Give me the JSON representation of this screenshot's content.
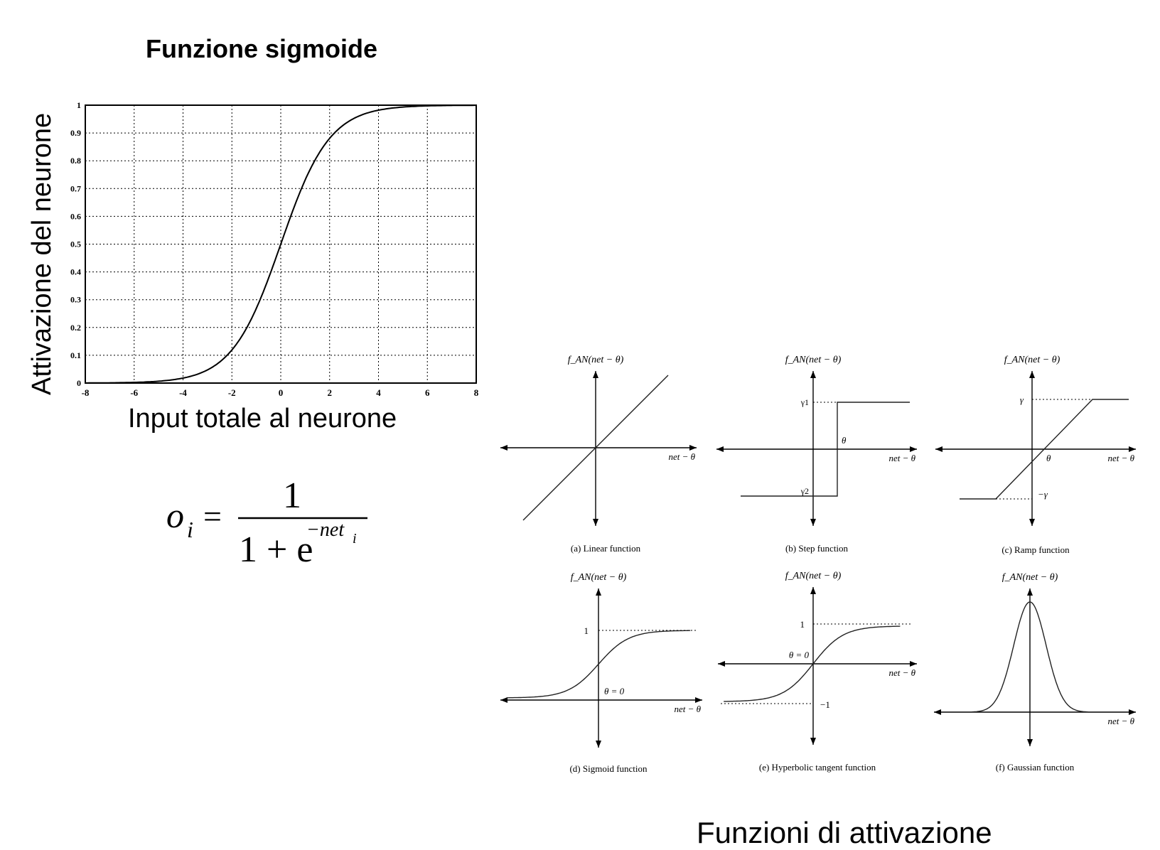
{
  "chart_data": [
    {
      "type": "line",
      "title": "Funzione sigmoide",
      "xlabel": "Input totale al neurone",
      "ylabel": "Attivazione del neurone",
      "xlim": [
        -8,
        8
      ],
      "ylim": [
        0,
        1
      ],
      "x_ticks": [
        "-8",
        "-6",
        "-4",
        "-2",
        "0",
        "2",
        "4",
        "6",
        "8"
      ],
      "y_ticks": [
        "0",
        "0.1",
        "0.2",
        "0.3",
        "0.4",
        "0.5",
        "0.6",
        "0.7",
        "0.8",
        "0.9",
        "1"
      ],
      "grid": true,
      "series": [
        {
          "x": [
            -8,
            -6,
            -4,
            -3,
            -2,
            -1,
            0,
            1,
            2,
            3,
            4,
            6,
            8
          ],
          "values": [
            0.0003,
            0.0025,
            0.018,
            0.047,
            0.119,
            0.269,
            0.5,
            0.731,
            0.881,
            0.953,
            0.982,
            0.9975,
            0.9997
          ]
        }
      ],
      "formula": {
        "lhs": "o",
        "lhs_sub": "i",
        "equals": "=",
        "numerator": "1",
        "denominator_base": "1 + e",
        "exponent": "−net",
        "exponent_sub": "i"
      }
    },
    {
      "type": "line",
      "title": "Funzioni di attivazione",
      "panels": [
        {
          "id": "a",
          "caption": "(a) Linear function",
          "ylabel": "f_AN(net − θ)",
          "xlabel": "net − θ",
          "points": [
            [
              -3,
              -3
            ],
            [
              3,
              3
            ]
          ]
        },
        {
          "id": "b",
          "caption": "(b) Step function",
          "ylabel": "f_AN(net − θ)",
          "xlabel": "net − θ",
          "labels": {
            "upper": "γ1",
            "lower": "γ2",
            "threshold": "θ"
          },
          "points": [
            [
              -3,
              -2
            ],
            [
              1,
              -2
            ],
            [
              1,
              2
            ],
            [
              4,
              2
            ]
          ]
        },
        {
          "id": "c",
          "caption": "(c) Ramp function",
          "ylabel": "f_AN(net − θ)",
          "xlabel": "net − θ",
          "labels": {
            "upper": "γ",
            "lower": "−γ",
            "threshold": "θ"
          },
          "points": [
            [
              -3,
              -2
            ],
            [
              -1.5,
              -2
            ],
            [
              2.5,
              2
            ],
            [
              4,
              2
            ]
          ]
        },
        {
          "id": "d",
          "caption": "(d) Sigmoid function",
          "ylabel": "f_AN(net − θ)",
          "xlabel": "net − θ",
          "labels": {
            "upper": "1",
            "threshold": "θ = 0"
          },
          "curve": "sigmoid"
        },
        {
          "id": "e",
          "caption": "(e) Hyperbolic tangent function",
          "ylabel": "f_AN(net − θ)",
          "xlabel": "net − θ",
          "labels": {
            "upper": "1",
            "lower": "−1",
            "threshold": "θ = 0"
          },
          "curve": "tanh"
        },
        {
          "id": "f",
          "caption": "(f) Gaussian function",
          "ylabel": "f_AN(net − θ)",
          "xlabel": "net − θ",
          "curve": "gaussian"
        }
      ]
    }
  ]
}
